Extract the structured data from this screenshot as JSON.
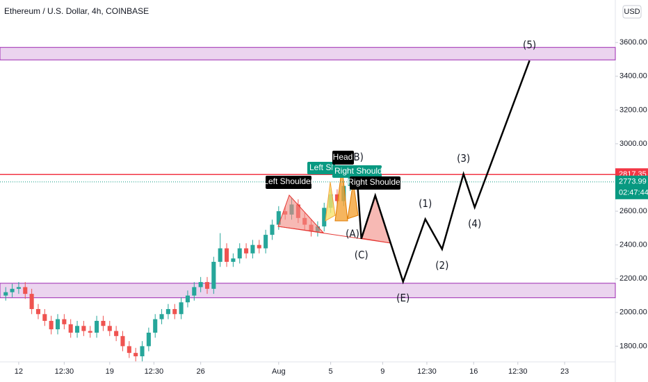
{
  "chart_data": {
    "type": "candlestick",
    "title": "Ethereum / U.S. Dollar, 4h, COINBASE",
    "currency": "USD",
    "up_color": "#26a69a",
    "down_color": "#ef5350",
    "xlim": [
      -1.44,
      45.9
    ],
    "ylim": [
      1707,
      3852
    ],
    "xticks": [
      {
        "value": 0,
        "label": "12"
      },
      {
        "value": 3.5,
        "label": "12:30"
      },
      {
        "value": 7,
        "label": "19"
      },
      {
        "value": 10.4,
        "label": "12:30"
      },
      {
        "value": 14,
        "label": "26"
      },
      {
        "value": 20,
        "label": "Aug"
      },
      {
        "value": 24,
        "label": "5"
      },
      {
        "value": 28,
        "label": "9"
      },
      {
        "value": 31.4,
        "label": "12:30"
      },
      {
        "value": 35,
        "label": "16"
      },
      {
        "value": 38.4,
        "label": "12:30"
      },
      {
        "value": 42,
        "label": "23"
      }
    ],
    "yticks": [
      {
        "value": 1800,
        "label": "1800.00"
      },
      {
        "value": 2000,
        "label": "2000.00"
      },
      {
        "value": 2200,
        "label": "2200.00"
      },
      {
        "value": 2400,
        "label": "2400.00"
      },
      {
        "value": 2600,
        "label": "2600.00"
      },
      {
        "value": 3000,
        "label": "3000.00"
      },
      {
        "value": 3200,
        "label": "3200.00"
      },
      {
        "value": 3400,
        "label": "3400.00"
      },
      {
        "value": 3600,
        "label": "3600.00"
      }
    ],
    "x": [
      -1,
      -0.5,
      0,
      0.5,
      1,
      1.5,
      2,
      2.5,
      3,
      3.5,
      4,
      4.5,
      5,
      5.5,
      6,
      6.5,
      7,
      7.5,
      8,
      8.5,
      9,
      9.5,
      10,
      10.5,
      11,
      11.5,
      12,
      12.5,
      13,
      13.5,
      14,
      14.5,
      15,
      15.5,
      16,
      16.5,
      17,
      17.5,
      18,
      18.5,
      19,
      19.5,
      20,
      20.5,
      21,
      21.5,
      22,
      22.5,
      23,
      23.5,
      24,
      24.5,
      25,
      25.5,
      26
    ],
    "open": [
      2100,
      2120,
      2140,
      2150,
      2110,
      2020,
      1990,
      1950,
      1900,
      1960,
      1930,
      1880,
      1920,
      1890,
      1880,
      1950,
      1920,
      1890,
      1860,
      1800,
      1760,
      1740,
      1800,
      1880,
      1960,
      1990,
      2020,
      1990,
      2060,
      2100,
      2150,
      2180,
      2140,
      2300,
      2380,
      2300,
      2320,
      2380,
      2350,
      2400,
      2380,
      2460,
      2520,
      2600,
      2580,
      2640,
      2560,
      2520,
      2480,
      2510,
      2620,
      2700,
      2660,
      2750,
      2800
    ],
    "high": [
      2150,
      2170,
      2180,
      2180,
      2140,
      2050,
      2020,
      1980,
      1990,
      1990,
      1960,
      1950,
      1950,
      1920,
      1980,
      1980,
      1950,
      1920,
      1890,
      1830,
      1790,
      1830,
      1910,
      1990,
      2020,
      2050,
      2050,
      2090,
      2130,
      2180,
      2210,
      2210,
      2330,
      2470,
      2410,
      2350,
      2410,
      2410,
      2430,
      2430,
      2490,
      2550,
      2630,
      2630,
      2680,
      2670,
      2590,
      2550,
      2540,
      2650,
      2730,
      2730,
      2780,
      2840,
      2830
    ],
    "low": [
      2070,
      2090,
      2110,
      2080,
      1990,
      1960,
      1920,
      1870,
      1870,
      1900,
      1850,
      1850,
      1860,
      1850,
      1850,
      1890,
      1860,
      1830,
      1770,
      1730,
      1710,
      1710,
      1770,
      1850,
      1930,
      1960,
      1960,
      1960,
      2030,
      2070,
      2120,
      2110,
      2110,
      2270,
      2270,
      2270,
      2290,
      2320,
      2320,
      2350,
      2350,
      2430,
      2490,
      2550,
      2550,
      2530,
      2490,
      2450,
      2450,
      2480,
      2590,
      2630,
      2630,
      2720,
      2760
    ],
    "close": [
      2120,
      2140,
      2150,
      2110,
      2020,
      1990,
      1950,
      1900,
      1960,
      1930,
      1880,
      1920,
      1890,
      1880,
      1950,
      1920,
      1890,
      1860,
      1800,
      1760,
      1740,
      1800,
      1880,
      1960,
      1990,
      2020,
      1990,
      2060,
      2100,
      2150,
      2180,
      2140,
      2300,
      2380,
      2300,
      2320,
      2380,
      2350,
      2400,
      2380,
      2460,
      2520,
      2600,
      2580,
      2640,
      2560,
      2520,
      2480,
      2510,
      2620,
      2700,
      2660,
      2750,
      2800,
      2773.99
    ],
    "zones": [
      {
        "from": 3497,
        "to": 3571
      },
      {
        "from": 2087,
        "to": 2173
      }
    ],
    "zone_color": "#9c27b0",
    "level": {
      "value": 2817.35,
      "color": "#f23645"
    },
    "last": {
      "value": 2773.99,
      "countdown": "02:47:44",
      "color": "#089981"
    },
    "wave": {
      "color": "#000000",
      "x": [
        26.0,
        26.36,
        27.43,
        29.57,
        31.28,
        32.57,
        34.22,
        35.08,
        39.3
      ],
      "y": [
        2829,
        2437,
        2693,
        2182,
        2553,
        2375,
        2821,
        2623,
        3493
      ],
      "labels": [
        "(B)",
        "(C)",
        null,
        "(E)",
        "(1)",
        "(2)",
        "(3)",
        "(4)",
        "(5)"
      ]
    },
    "pattern_labels": [
      "Left Shoulder",
      "Left Shoulder",
      "Head",
      "Right Shoulder",
      "Right Shoulder",
      "(A)"
    ]
  }
}
